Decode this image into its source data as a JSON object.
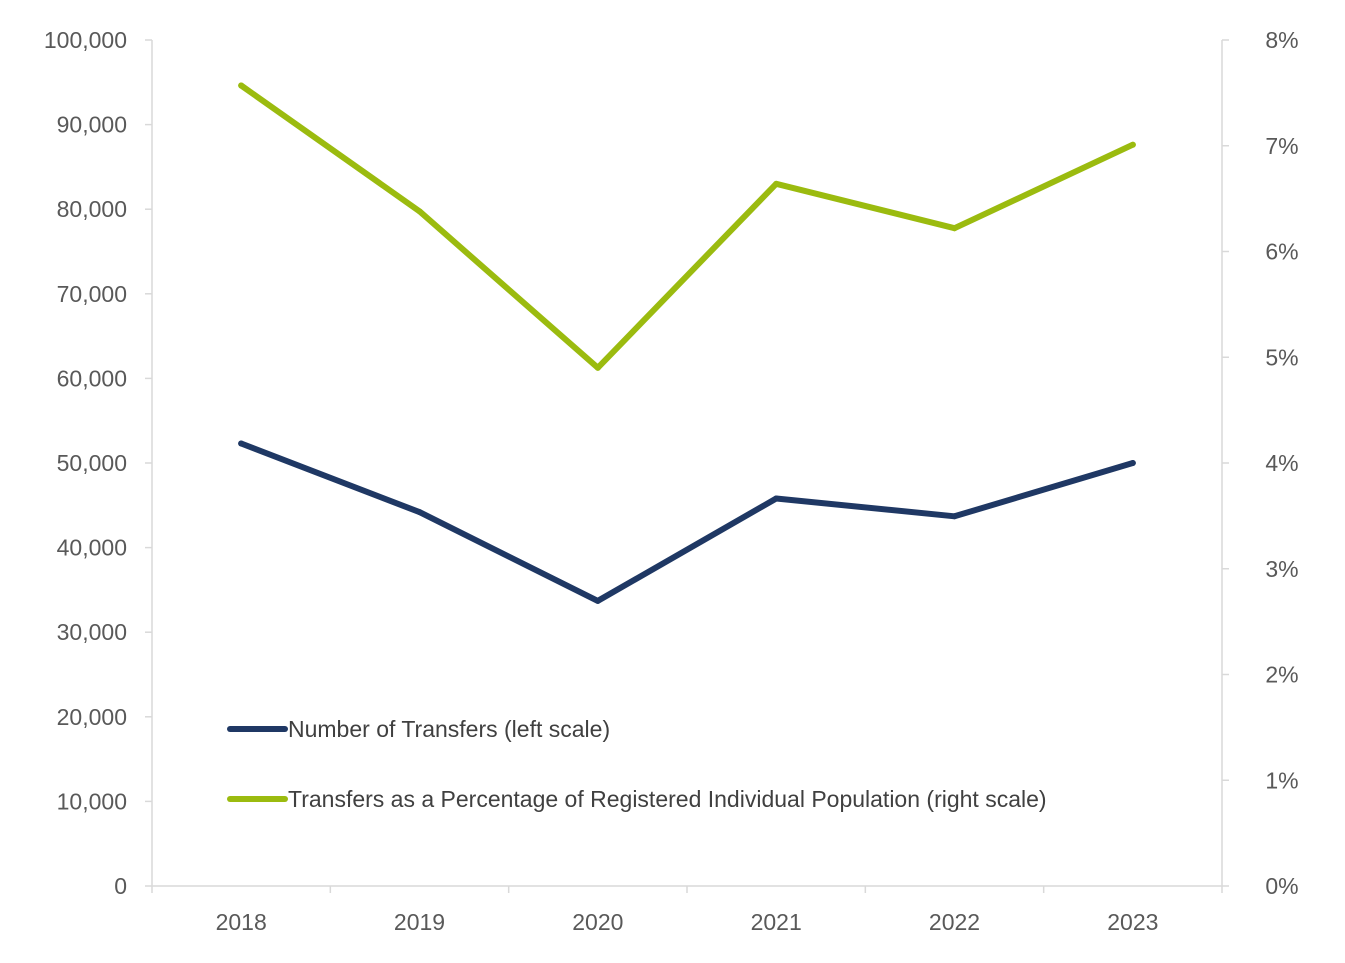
{
  "chart_data": {
    "type": "line",
    "categories": [
      "2018",
      "2019",
      "2020",
      "2021",
      "2022",
      "2023"
    ],
    "series": [
      {
        "name": "Number of Transfers (left scale)",
        "axis": "left",
        "color": "#1f3864",
        "values": [
          52300,
          44200,
          33700,
          45800,
          43700,
          50000
        ]
      },
      {
        "name": "Transfers as a Percentage of Registered Individual Population (right scale)",
        "axis": "right",
        "color": "#9bbb0f",
        "values": [
          7.57,
          6.38,
          4.9,
          6.64,
          6.22,
          7.01
        ]
      }
    ],
    "left_axis": {
      "range": [
        0,
        100000
      ],
      "ticks": [
        "0",
        "10,000",
        "20,000",
        "30,000",
        "40,000",
        "50,000",
        "60,000",
        "70,000",
        "80,000",
        "90,000",
        "100,000"
      ]
    },
    "right_axis": {
      "range": [
        0,
        8
      ],
      "ticks": [
        "0%",
        "1%",
        "2%",
        "3%",
        "4%",
        "5%",
        "6%",
        "7%",
        "8%"
      ]
    },
    "grid": false,
    "legend_position": "bottom-left"
  }
}
